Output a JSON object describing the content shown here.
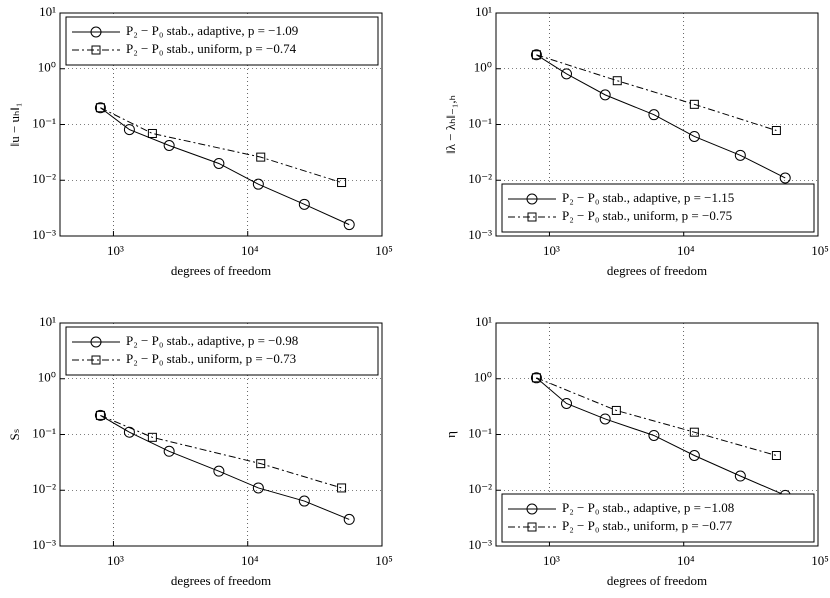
{
  "chart_data": [
    {
      "type": "line",
      "ylabel": "‖u − uₕ‖₁",
      "xlabel": "degrees of freedom",
      "xscale": "log",
      "yscale": "log",
      "grid": true,
      "legend": "upper right",
      "xlim": [
        400,
        100000
      ],
      "ylim": [
        0.001,
        10
      ],
      "xticks": [
        {
          "value": 1000,
          "label": "10³"
        },
        {
          "value": 10000,
          "label": "10⁴"
        },
        {
          "value": 100000,
          "label": "10⁵"
        }
      ],
      "yticks": [
        {
          "value": 0.001,
          "label": "10⁻³"
        },
        {
          "value": 0.01,
          "label": "10⁻²"
        },
        {
          "value": 0.1,
          "label": "10⁻¹"
        },
        {
          "value": 1,
          "label": "10⁰"
        },
        {
          "value": 10,
          "label": "10¹"
        }
      ],
      "series": [
        {
          "name": "P₂ − P₀ stab., adaptive, p = −1.09",
          "color": "#000000",
          "marker": "circle",
          "linestyle": "solid",
          "x": [
            800,
            1315,
            2600,
            6100,
            12000,
            26400,
            57000
          ],
          "values": [
            0.2,
            0.081,
            0.042,
            0.02,
            0.0085,
            0.0037,
            0.0016
          ]
        },
        {
          "name": "P₂ − P₀ stab., uniform, p = −0.74",
          "color": "#000000",
          "marker": "square",
          "linestyle": "dashdot",
          "x": [
            800,
            1950,
            12500,
            50000
          ],
          "values": [
            0.2,
            0.069,
            0.026,
            0.0091
          ]
        }
      ]
    },
    {
      "type": "line",
      "ylabel": "‖λ − λₕ‖₋₁,ₕ",
      "xlabel": "degrees of freedom",
      "xscale": "log",
      "yscale": "log",
      "grid": true,
      "legend": "lower right",
      "xlim": [
        400,
        100000
      ],
      "ylim": [
        0.001,
        10
      ],
      "xticks": [
        {
          "value": 1000,
          "label": "10³"
        },
        {
          "value": 10000,
          "label": "10⁴"
        },
        {
          "value": 100000,
          "label": "10⁵"
        }
      ],
      "yticks": [
        {
          "value": 0.001,
          "label": "10⁻³"
        },
        {
          "value": 0.01,
          "label": "10⁻²"
        },
        {
          "value": 0.1,
          "label": "10⁻¹"
        },
        {
          "value": 1,
          "label": "10⁰"
        },
        {
          "value": 10,
          "label": "10¹"
        }
      ],
      "series": [
        {
          "name": "P₂ − P₀ stab., adaptive, p = −1.15",
          "color": "#000000",
          "marker": "circle",
          "linestyle": "solid",
          "x": [
            800,
            1340,
            2600,
            6000,
            12000,
            26400,
            57000
          ],
          "values": [
            1.78,
            0.81,
            0.34,
            0.15,
            0.061,
            0.028,
            0.011
          ]
        },
        {
          "name": "P₂ − P₀ stab., uniform, p = −0.75",
          "color": "#000000",
          "marker": "square",
          "linestyle": "dashdot",
          "x": [
            800,
            3200,
            12000,
            49000
          ],
          "values": [
            1.78,
            0.61,
            0.23,
            0.078
          ]
        }
      ]
    },
    {
      "type": "line",
      "ylabel": "Sₛ",
      "xlabel": "degrees of freedom",
      "xscale": "log",
      "yscale": "log",
      "grid": true,
      "legend": "upper right",
      "xlim": [
        400,
        100000
      ],
      "ylim": [
        0.001,
        10
      ],
      "xticks": [
        {
          "value": 1000,
          "label": "10³"
        },
        {
          "value": 10000,
          "label": "10⁴"
        },
        {
          "value": 100000,
          "label": "10⁵"
        }
      ],
      "yticks": [
        {
          "value": 0.001,
          "label": "10⁻³"
        },
        {
          "value": 0.01,
          "label": "10⁻²"
        },
        {
          "value": 0.1,
          "label": "10⁻¹"
        },
        {
          "value": 1,
          "label": "10⁰"
        },
        {
          "value": 10,
          "label": "10¹"
        }
      ],
      "series": [
        {
          "name": "P₂ − P₀ stab., adaptive, p = −0.98",
          "color": "#000000",
          "marker": "circle",
          "linestyle": "solid",
          "x": [
            800,
            1315,
            2600,
            6100,
            12000,
            26400,
            57000
          ],
          "values": [
            0.22,
            0.11,
            0.05,
            0.022,
            0.011,
            0.0064,
            0.003
          ]
        },
        {
          "name": "P₂ − P₀ stab., uniform, p = −0.73",
          "color": "#000000",
          "marker": "square",
          "linestyle": "dashdot",
          "x": [
            800,
            1950,
            12500,
            50000
          ],
          "values": [
            0.22,
            0.089,
            0.03,
            0.011
          ]
        }
      ]
    },
    {
      "type": "line",
      "ylabel": "η",
      "xlabel": "degrees of freedom",
      "xscale": "log",
      "yscale": "log",
      "grid": true,
      "legend": "lower right",
      "xlim": [
        400,
        100000
      ],
      "ylim": [
        0.001,
        10
      ],
      "xticks": [
        {
          "value": 1000,
          "label": "10³"
        },
        {
          "value": 10000,
          "label": "10⁴"
        },
        {
          "value": 100000,
          "label": "10⁵"
        }
      ],
      "yticks": [
        {
          "value": 0.001,
          "label": "10⁻³"
        },
        {
          "value": 0.01,
          "label": "10⁻²"
        },
        {
          "value": 0.1,
          "label": "10⁻¹"
        },
        {
          "value": 1,
          "label": "10⁰"
        },
        {
          "value": 10,
          "label": "10¹"
        }
      ],
      "series": [
        {
          "name": "P₂ − P₀ stab., adaptive, p = −1.08",
          "color": "#000000",
          "marker": "circle",
          "linestyle": "solid",
          "x": [
            800,
            1340,
            2600,
            6000,
            12000,
            26400,
            57000
          ],
          "values": [
            1.04,
            0.36,
            0.19,
            0.096,
            0.042,
            0.018,
            0.0081
          ]
        },
        {
          "name": "P₂ − P₀ stab., uniform, p = −0.77",
          "color": "#000000",
          "marker": "square",
          "linestyle": "dashdot",
          "x": [
            800,
            3150,
            12000,
            49000
          ],
          "values": [
            1.04,
            0.27,
            0.11,
            0.042
          ]
        }
      ]
    }
  ]
}
